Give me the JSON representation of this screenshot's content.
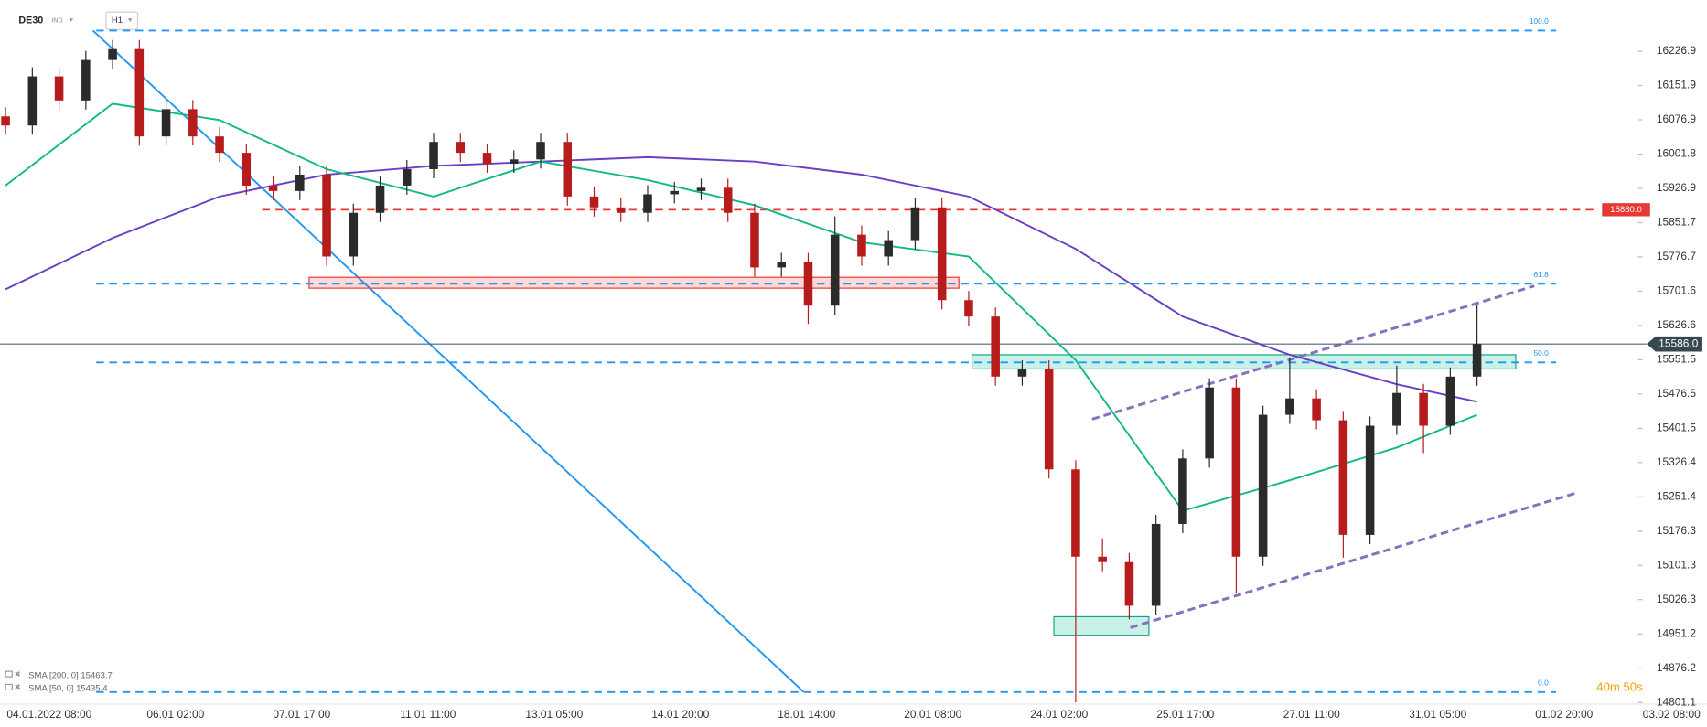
{
  "chart_data": {
    "type": "candlestick",
    "symbol": "DE30",
    "market": "IND",
    "interval": "H1",
    "timer": "40m 50s",
    "ylim": [
      14773.7,
      16339.2
    ],
    "yticks": [
      16226.9,
      16151.9,
      16076.9,
      16001.8,
      15926.9,
      15851.7,
      15776.7,
      15701.6,
      15626.6,
      15551.5,
      15476.5,
      15401.5,
      15326.4,
      15251.4,
      15176.3,
      15101.3,
      15026.3,
      14951.2,
      14876.2,
      14801.1
    ],
    "x_labels": [
      "04.01.2022  08:00",
      "06.01  02:00",
      "07.01  17:00",
      "11.01  11:00",
      "13.01  05:00",
      "14.01  20:00",
      "18.01  14:00",
      "20.01  08:00",
      "24.01  02:00",
      "25.01  17:00",
      "27.01  11:00",
      "31.01  05:00",
      "01.02  20:00",
      "03.02  08:00"
    ],
    "up_color": "#2b2b2b",
    "down_color": "#b71c1c",
    "open": [
      16084.4,
      16064.4,
      16171.9,
      16119.3,
      16207.8,
      16231.7,
      16040.5,
      16100.2,
      16040.5,
      16004.6,
      15932.9,
      15921.0,
      15956.8,
      15777.6,
      15873.2,
      15932.9,
      15968.8,
      16028.5,
      16004.6,
      15980.7,
      15990.2,
      16028.5,
      15909.0,
      15885.1,
      15873.2,
      15913.8,
      15921.0,
      15928.1,
      15873.2,
      15753.7,
      15765.6,
      15670.0,
      15825.4,
      15777.6,
      15813.4,
      15885.1,
      15682.0,
      15646.1,
      15514.7,
      15530.2,
      15311.5,
      15120.3,
      15108.4,
      15012.8,
      15192.0,
      15335.4,
      15490.8,
      15120.3,
      15431.0,
      15466.9,
      15419.1,
      15168.1,
      15407.1,
      15478.8,
      15407.1,
      15514.7
    ],
    "high": [
      16104.4,
      16191.9,
      16191.9,
      16227.8,
      16251.7,
      16251.7,
      16120.2,
      16120.2,
      16060.5,
      16024.6,
      15952.9,
      15976.8,
      15976.8,
      15893.2,
      15952.9,
      15988.8,
      16048.5,
      16048.5,
      16024.6,
      16010.2,
      16048.5,
      16048.5,
      15929.0,
      15905.1,
      15933.8,
      15941.0,
      15948.1,
      15948.1,
      15893.2,
      15785.6,
      15785.6,
      15865.4,
      15845.4,
      15833.4,
      15905.1,
      15905.1,
      15702.0,
      15666.1,
      15550.2,
      15550.2,
      15331.5,
      15160.3,
      15128.4,
      15212.0,
      15355.4,
      15510.8,
      15510.8,
      15451.0,
      15556.9,
      15486.9,
      15439.1,
      15427.1,
      15538.8,
      15498.8,
      15534.7,
      15672.0
    ],
    "low": [
      16044.4,
      16044.4,
      16099.3,
      16099.3,
      16187.8,
      16020.5,
      16020.5,
      16020.5,
      15984.6,
      15912.9,
      15901.0,
      15901.0,
      15757.6,
      15757.6,
      15853.2,
      15912.9,
      15948.8,
      15984.6,
      15960.7,
      15960.7,
      15970.2,
      15889.0,
      15865.1,
      15853.2,
      15853.2,
      15893.8,
      15901.0,
      15853.2,
      15733.7,
      15733.7,
      15630.0,
      15650.0,
      15757.6,
      15757.6,
      15793.4,
      15662.0,
      15626.1,
      15494.7,
      15494.7,
      15291.5,
      14801.1,
      15088.4,
      14982.8,
      14992.8,
      15172.0,
      15315.4,
      15040.3,
      15100.3,
      15411.0,
      15399.1,
      15118.1,
      15148.1,
      15387.1,
      15347.1,
      15387.1,
      15494.7
    ],
    "close": [
      16064.4,
      16171.9,
      16119.3,
      16207.8,
      16231.7,
      16040.5,
      16100.2,
      16040.5,
      16004.6,
      15932.9,
      15921.0,
      15956.8,
      15777.6,
      15873.2,
      15932.9,
      15968.8,
      16028.5,
      16004.6,
      15980.7,
      15990.2,
      16028.5,
      15909.0,
      15885.1,
      15873.2,
      15913.8,
      15921.0,
      15928.1,
      15873.2,
      15753.7,
      15765.6,
      15670.0,
      15825.4,
      15777.6,
      15813.4,
      15885.1,
      15682.0,
      15646.1,
      15514.7,
      15530.2,
      15311.5,
      15120.3,
      15108.4,
      15012.8,
      15192.0,
      15335.4,
      15490.8,
      15120.3,
      15431.0,
      15466.9,
      15419.1,
      15168.1,
      15407.1,
      15478.8,
      15407.1,
      15514.7,
      15586.0
    ],
    "series": [
      {
        "name": "SMA [200, 0] 15463.7",
        "color": "#6a3fc4",
        "x": [
          0,
          4,
          8,
          12,
          16,
          20,
          24,
          28,
          32,
          36,
          40,
          44,
          48,
          52,
          55
        ],
        "values": [
          15705.9,
          15818.2,
          15909.0,
          15956.8,
          15975.9,
          15985.5,
          15995.0,
          15985.5,
          15956.8,
          15909.0,
          15794.3,
          15646.1,
          15562.5,
          15497.9,
          15459.7
        ]
      },
      {
        "name": "SMA [50, 0] 15435.4",
        "color": "#12b886",
        "x": [
          0,
          4,
          8,
          12,
          16,
          20,
          24,
          28,
          32,
          36,
          40,
          44,
          48,
          52,
          55
        ],
        "values": [
          15933.0,
          16112.2,
          16076.3,
          15968.8,
          15909.0,
          15985.5,
          15944.9,
          15889.9,
          15808.6,
          15777.6,
          15550.5,
          15220.7,
          15287.6,
          15359.3,
          15431.0
        ]
      }
    ],
    "fib_levels": [
      {
        "value": 16272.3,
        "label": "100.0"
      },
      {
        "value": 15717.8,
        "label": "61.8"
      },
      {
        "value": 15545.7,
        "label": "50.0"
      },
      {
        "value": 14823.9,
        "label": "0.0"
      }
    ],
    "price_line": {
      "value": 15880,
      "label": "15880.0",
      "color": "#e53935"
    },
    "current_price": {
      "value": 15586,
      "label": "15586.0"
    }
  }
}
